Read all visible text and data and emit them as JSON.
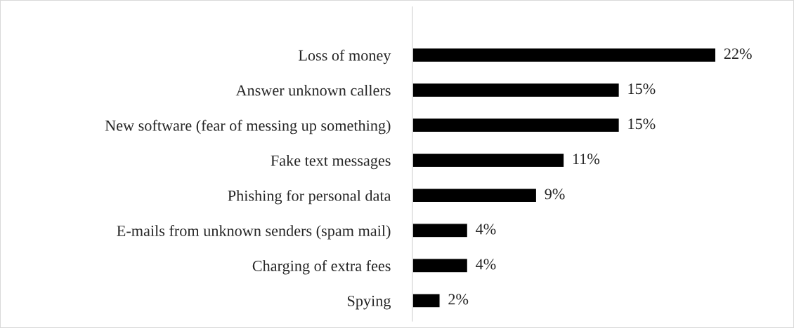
{
  "chart_data": {
    "type": "bar",
    "orientation": "horizontal",
    "categories": [
      "Loss of money",
      "Answer unknown callers",
      "New software (fear of messing up something)",
      "Fake text messages",
      "Phishing for personal data",
      "E-mails from unknown senders (spam mail)",
      "Charging of extra fees",
      "Spying"
    ],
    "values": [
      22,
      15,
      15,
      11,
      9,
      4,
      4,
      2
    ],
    "value_labels": [
      "22%",
      "15%",
      "15%",
      "11%",
      "9%",
      "4%",
      "4%",
      "2%"
    ],
    "color": "#000000",
    "tick_labels": "y",
    "grid": false,
    "legend": false
  }
}
